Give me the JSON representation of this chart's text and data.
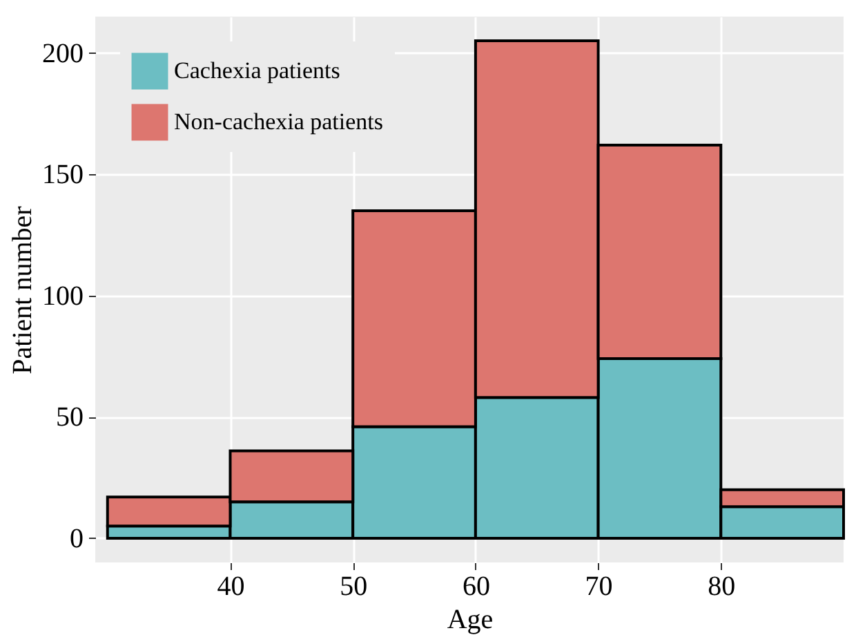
{
  "chart_data": {
    "type": "bar",
    "xlabel": "Age",
    "ylabel": "Patient number",
    "x": [
      35,
      45,
      55,
      65,
      75,
      85
    ],
    "stacked": true,
    "series": [
      {
        "name": "Cachexia patients",
        "color": "#6cbec3",
        "values": [
          5,
          15,
          46,
          58,
          74,
          13
        ]
      },
      {
        "name": "Non-cachexia patients",
        "color": "#dd766f",
        "values": [
          12,
          21,
          89,
          147,
          88,
          7
        ]
      }
    ],
    "xlim": [
      29,
      90
    ],
    "xticks": [
      40,
      50,
      60,
      70,
      80
    ],
    "ylim": [
      -10,
      215
    ],
    "yticks": [
      0,
      50,
      100,
      150,
      200
    ],
    "grid": true,
    "legend": "top left"
  }
}
